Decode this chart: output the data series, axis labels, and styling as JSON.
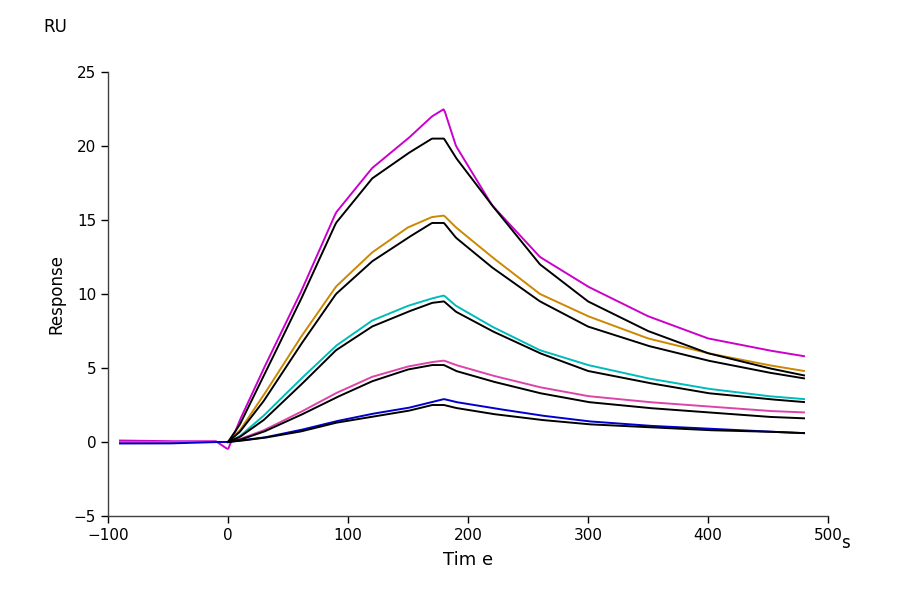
{
  "xlabel": "Tim e",
  "xlabel_unit": "s",
  "ylabel": "Response",
  "ylabel_top": "RU",
  "xlim": [
    -100,
    500
  ],
  "ylim": [
    -5,
    25
  ],
  "xticks": [
    -100,
    0,
    100,
    200,
    300,
    400,
    500
  ],
  "yticks": [
    -5,
    0,
    5,
    10,
    15,
    20,
    25
  ],
  "background_color": "#ffffff",
  "series": [
    {
      "color": "#cc00cc",
      "label": "magenta_high",
      "points": [
        [
          -90,
          0.1
        ],
        [
          -50,
          0.05
        ],
        [
          -10,
          0.05
        ],
        [
          0,
          -0.5
        ],
        [
          10,
          1.5
        ],
        [
          30,
          5.0
        ],
        [
          60,
          10.0
        ],
        [
          90,
          15.5
        ],
        [
          120,
          18.5
        ],
        [
          150,
          20.5
        ],
        [
          170,
          22.0
        ],
        [
          180,
          22.5
        ],
        [
          190,
          20.0
        ],
        [
          220,
          16.0
        ],
        [
          260,
          12.5
        ],
        [
          300,
          10.5
        ],
        [
          350,
          8.5
        ],
        [
          400,
          7.0
        ],
        [
          450,
          6.2
        ],
        [
          480,
          5.8
        ]
      ]
    },
    {
      "color": "#cc8800",
      "label": "orange",
      "points": [
        [
          -90,
          0.0
        ],
        [
          -50,
          0.0
        ],
        [
          -10,
          0.0
        ],
        [
          0,
          0.0
        ],
        [
          10,
          0.8
        ],
        [
          30,
          3.2
        ],
        [
          60,
          7.0
        ],
        [
          90,
          10.5
        ],
        [
          120,
          12.8
        ],
        [
          150,
          14.5
        ],
        [
          170,
          15.2
        ],
        [
          180,
          15.3
        ],
        [
          190,
          14.5
        ],
        [
          220,
          12.5
        ],
        [
          260,
          10.0
        ],
        [
          300,
          8.5
        ],
        [
          350,
          7.0
        ],
        [
          400,
          6.0
        ],
        [
          450,
          5.2
        ],
        [
          480,
          4.8
        ]
      ]
    },
    {
      "color": "#00bbbb",
      "label": "cyan",
      "points": [
        [
          -90,
          0.0
        ],
        [
          -50,
          0.0
        ],
        [
          -10,
          0.0
        ],
        [
          0,
          0.0
        ],
        [
          10,
          0.4
        ],
        [
          30,
          1.8
        ],
        [
          60,
          4.2
        ],
        [
          90,
          6.5
        ],
        [
          120,
          8.2
        ],
        [
          150,
          9.2
        ],
        [
          170,
          9.7
        ],
        [
          180,
          9.9
        ],
        [
          190,
          9.2
        ],
        [
          220,
          7.8
        ],
        [
          260,
          6.2
        ],
        [
          300,
          5.2
        ],
        [
          350,
          4.3
        ],
        [
          400,
          3.6
        ],
        [
          450,
          3.1
        ],
        [
          480,
          2.9
        ]
      ]
    },
    {
      "color": "#dd44aa",
      "label": "pink",
      "points": [
        [
          -90,
          0.0
        ],
        [
          -50,
          0.0
        ],
        [
          -10,
          0.0
        ],
        [
          0,
          0.0
        ],
        [
          10,
          0.2
        ],
        [
          30,
          0.8
        ],
        [
          60,
          2.0
        ],
        [
          90,
          3.3
        ],
        [
          120,
          4.4
        ],
        [
          150,
          5.1
        ],
        [
          170,
          5.4
        ],
        [
          180,
          5.5
        ],
        [
          190,
          5.2
        ],
        [
          220,
          4.5
        ],
        [
          260,
          3.7
        ],
        [
          300,
          3.1
        ],
        [
          350,
          2.7
        ],
        [
          400,
          2.4
        ],
        [
          450,
          2.1
        ],
        [
          480,
          2.0
        ]
      ]
    },
    {
      "color": "#0000cc",
      "label": "blue",
      "points": [
        [
          -90,
          -0.1
        ],
        [
          -50,
          -0.1
        ],
        [
          -10,
          0.0
        ],
        [
          0,
          0.0
        ],
        [
          10,
          0.1
        ],
        [
          30,
          0.3
        ],
        [
          60,
          0.8
        ],
        [
          90,
          1.4
        ],
        [
          120,
          1.9
        ],
        [
          150,
          2.3
        ],
        [
          170,
          2.7
        ],
        [
          180,
          2.9
        ],
        [
          190,
          2.7
        ],
        [
          220,
          2.3
        ],
        [
          260,
          1.8
        ],
        [
          300,
          1.4
        ],
        [
          350,
          1.1
        ],
        [
          400,
          0.9
        ],
        [
          450,
          0.7
        ],
        [
          480,
          0.6
        ]
      ]
    }
  ],
  "black_fits": [
    {
      "label": "fit_high",
      "points": [
        [
          0,
          0.0
        ],
        [
          10,
          1.2
        ],
        [
          30,
          4.5
        ],
        [
          60,
          9.5
        ],
        [
          90,
          14.8
        ],
        [
          120,
          17.8
        ],
        [
          150,
          19.5
        ],
        [
          170,
          20.5
        ],
        [
          180,
          20.5
        ],
        [
          190,
          19.2
        ],
        [
          220,
          16.0
        ],
        [
          260,
          12.0
        ],
        [
          300,
          9.5
        ],
        [
          350,
          7.5
        ],
        [
          400,
          6.0
        ],
        [
          450,
          5.0
        ],
        [
          480,
          4.5
        ]
      ]
    },
    {
      "label": "fit_orange",
      "points": [
        [
          0,
          0.0
        ],
        [
          10,
          0.7
        ],
        [
          30,
          2.8
        ],
        [
          60,
          6.5
        ],
        [
          90,
          10.0
        ],
        [
          120,
          12.2
        ],
        [
          150,
          13.8
        ],
        [
          170,
          14.8
        ],
        [
          180,
          14.8
        ],
        [
          190,
          13.8
        ],
        [
          220,
          11.8
        ],
        [
          260,
          9.5
        ],
        [
          300,
          7.8
        ],
        [
          350,
          6.5
        ],
        [
          400,
          5.5
        ],
        [
          450,
          4.7
        ],
        [
          480,
          4.3
        ]
      ]
    },
    {
      "label": "fit_cyan",
      "points": [
        [
          0,
          0.0
        ],
        [
          10,
          0.35
        ],
        [
          30,
          1.5
        ],
        [
          60,
          3.8
        ],
        [
          90,
          6.2
        ],
        [
          120,
          7.8
        ],
        [
          150,
          8.8
        ],
        [
          170,
          9.4
        ],
        [
          180,
          9.5
        ],
        [
          190,
          8.8
        ],
        [
          220,
          7.5
        ],
        [
          260,
          6.0
        ],
        [
          300,
          4.8
        ],
        [
          350,
          4.0
        ],
        [
          400,
          3.3
        ],
        [
          450,
          2.9
        ],
        [
          480,
          2.7
        ]
      ]
    },
    {
      "label": "fit_pink",
      "points": [
        [
          0,
          0.0
        ],
        [
          10,
          0.15
        ],
        [
          30,
          0.7
        ],
        [
          60,
          1.8
        ],
        [
          90,
          3.0
        ],
        [
          120,
          4.1
        ],
        [
          150,
          4.9
        ],
        [
          170,
          5.2
        ],
        [
          180,
          5.2
        ],
        [
          190,
          4.8
        ],
        [
          220,
          4.1
        ],
        [
          260,
          3.3
        ],
        [
          300,
          2.7
        ],
        [
          350,
          2.3
        ],
        [
          400,
          2.0
        ],
        [
          450,
          1.7
        ],
        [
          480,
          1.6
        ]
      ]
    },
    {
      "label": "fit_blue",
      "points": [
        [
          0,
          0.0
        ],
        [
          10,
          0.08
        ],
        [
          30,
          0.28
        ],
        [
          60,
          0.7
        ],
        [
          90,
          1.3
        ],
        [
          120,
          1.7
        ],
        [
          150,
          2.1
        ],
        [
          170,
          2.5
        ],
        [
          180,
          2.5
        ],
        [
          190,
          2.3
        ],
        [
          220,
          1.9
        ],
        [
          260,
          1.5
        ],
        [
          300,
          1.2
        ],
        [
          350,
          1.0
        ],
        [
          400,
          0.8
        ],
        [
          450,
          0.7
        ],
        [
          480,
          0.6
        ]
      ]
    }
  ]
}
